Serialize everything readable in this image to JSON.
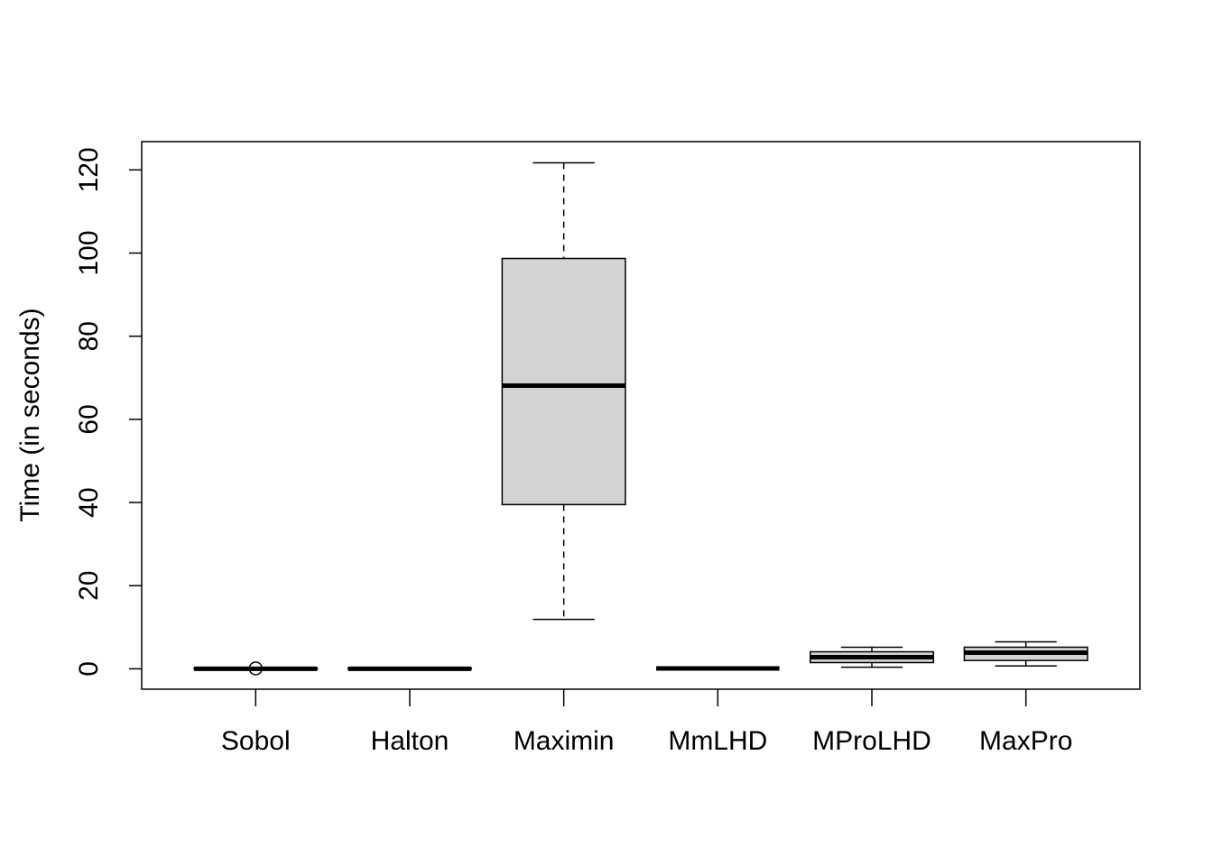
{
  "chart_data": {
    "type": "boxplot",
    "y_label": "Time (in seconds)",
    "categories": [
      "Sobol",
      "Halton",
      "Maximin",
      "MmLHD",
      "MProLHD",
      "MaxPro"
    ],
    "whisker_low": [
      0,
      0,
      11.9,
      0.1,
      0.4,
      0.7
    ],
    "q1": [
      0,
      0,
      39.5,
      0.1,
      1.5,
      2.0
    ],
    "median": [
      0,
      0,
      68.1,
      0.1,
      2.8,
      3.9
    ],
    "q3": [
      0.1,
      0.1,
      98.7,
      0.1,
      4.1,
      5.2
    ],
    "whisker_high": [
      0.1,
      0.1,
      121.7,
      0.1,
      5.2,
      6.5
    ],
    "outliers": [
      [
        0.1
      ],
      [],
      [],
      [],
      [],
      []
    ],
    "color": "#d3d3d3",
    "ylim": [
      -4.9,
      126.8
    ],
    "yticks": [
      0,
      20,
      40,
      60,
      80,
      100,
      120
    ]
  }
}
